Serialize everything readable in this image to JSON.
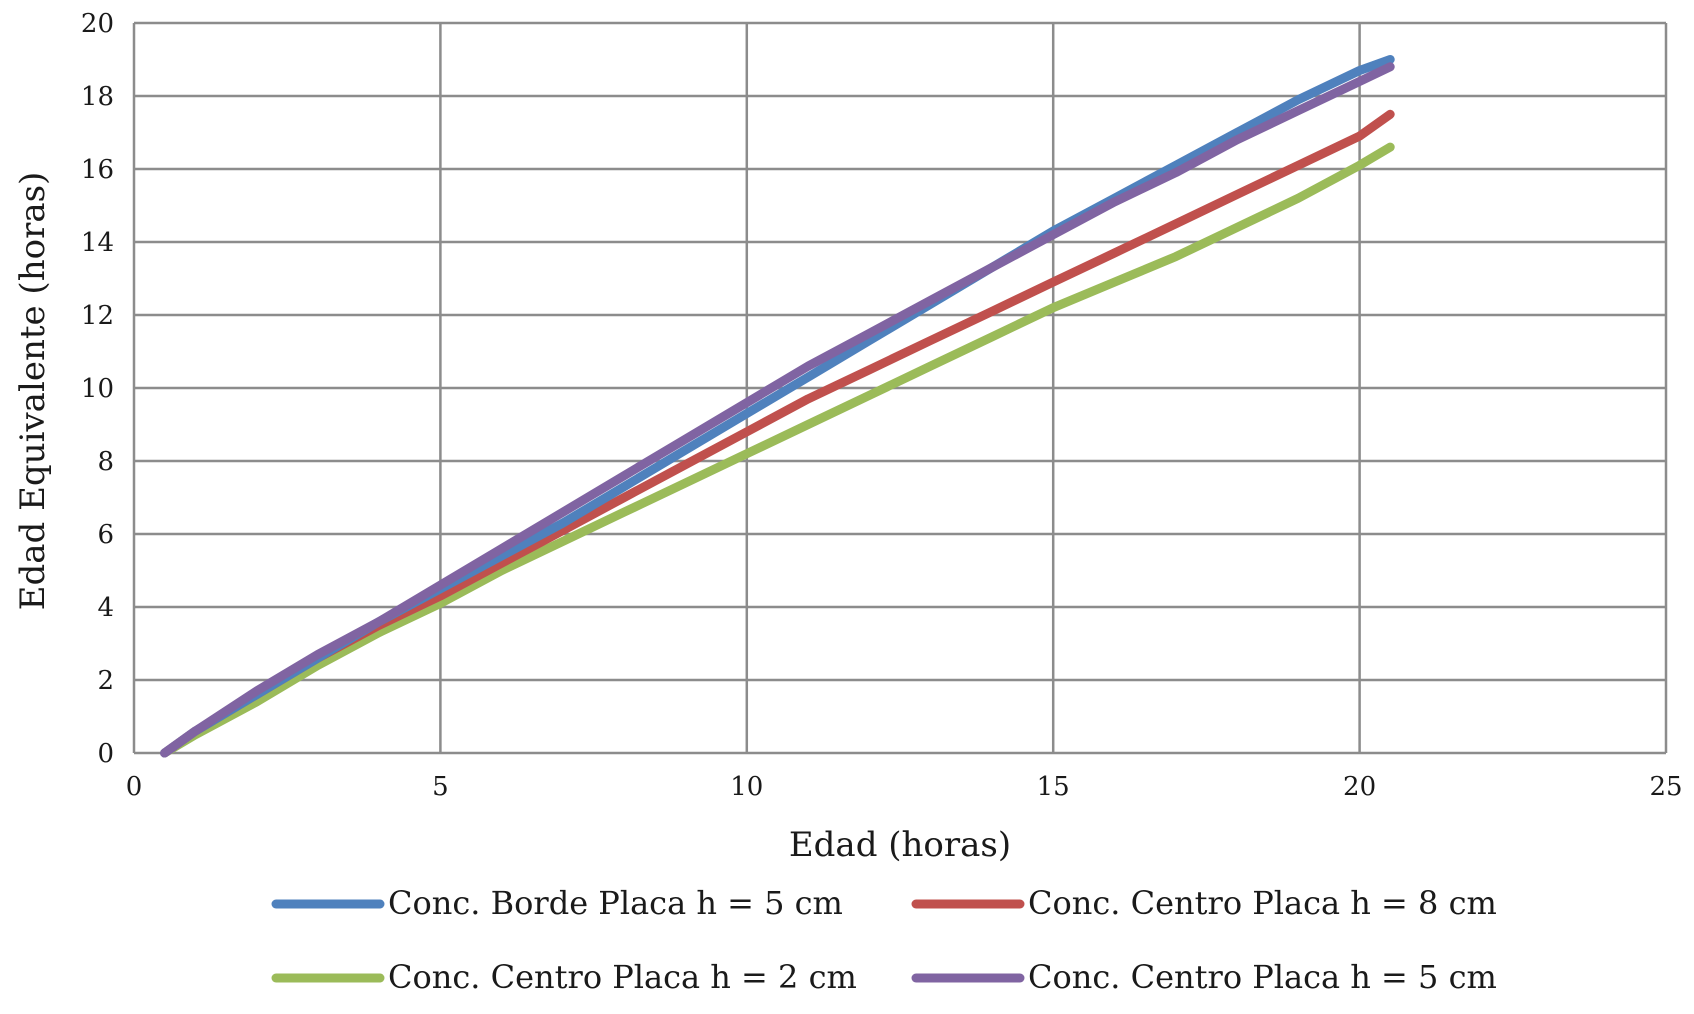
{
  "chart_data": {
    "type": "line",
    "title": "",
    "xlabel": "Edad (horas)",
    "ylabel": "Edad Equivalente (horas)",
    "xlim": [
      0,
      25
    ],
    "ylim": [
      0,
      20
    ],
    "x_ticks": [
      0,
      5,
      10,
      15,
      20,
      25
    ],
    "y_ticks": [
      0,
      2,
      4,
      6,
      8,
      10,
      12,
      14,
      16,
      18,
      20
    ],
    "grid": true,
    "legend_position": "bottom",
    "series": [
      {
        "name": "Conc. Borde Placa h = 5 cm",
        "color": "#4f81bd",
        "x": [
          0.5,
          1,
          2,
          3,
          4,
          5,
          6,
          7,
          8,
          9,
          10,
          11,
          12,
          13,
          14,
          15,
          16,
          17,
          18,
          19,
          20,
          20.5
        ],
        "y": [
          0,
          0.6,
          1.6,
          2.6,
          3.6,
          4.5,
          5.4,
          6.3,
          7.3,
          8.3,
          9.3,
          10.3,
          11.3,
          12.3,
          13.3,
          14.3,
          15.2,
          16.1,
          17.0,
          17.9,
          18.7,
          19.0
        ]
      },
      {
        "name": "Conc. Centro Placa h = 8 cm",
        "color": "#c0504d",
        "x": [
          0.5,
          1,
          2,
          3,
          4,
          5,
          6,
          7,
          8,
          9,
          10,
          11,
          12,
          13,
          14,
          15,
          16,
          17,
          18,
          19,
          20,
          20.5
        ],
        "y": [
          0,
          0.6,
          1.6,
          2.6,
          3.5,
          4.3,
          5.2,
          6.1,
          7.0,
          7.9,
          8.8,
          9.7,
          10.5,
          11.3,
          12.1,
          12.9,
          13.7,
          14.5,
          15.3,
          16.1,
          16.9,
          17.5
        ]
      },
      {
        "name": "Conc. Centro Placa h = 2 cm",
        "color": "#9bbb59",
        "x": [
          0.5,
          1,
          2,
          3,
          4,
          5,
          6,
          7,
          8,
          9,
          10,
          11,
          12,
          13,
          14,
          15,
          16,
          17,
          18,
          19,
          20,
          20.5
        ],
        "y": [
          0,
          0.5,
          1.4,
          2.4,
          3.3,
          4.1,
          5.0,
          5.8,
          6.6,
          7.4,
          8.2,
          9.0,
          9.8,
          10.6,
          11.4,
          12.2,
          12.9,
          13.6,
          14.4,
          15.2,
          16.1,
          16.6
        ]
      },
      {
        "name": "Conc. Centro Placa h = 5 cm",
        "color": "#8064a2",
        "x": [
          0.5,
          1,
          2,
          3,
          4,
          5,
          6,
          7,
          8,
          9,
          10,
          11,
          12,
          13,
          14,
          15,
          16,
          17,
          18,
          19,
          20,
          20.5
        ],
        "y": [
          0,
          0.6,
          1.7,
          2.7,
          3.6,
          4.6,
          5.6,
          6.6,
          7.6,
          8.6,
          9.6,
          10.6,
          11.5,
          12.4,
          13.3,
          14.2,
          15.1,
          15.9,
          16.8,
          17.6,
          18.4,
          18.8
        ]
      }
    ]
  }
}
